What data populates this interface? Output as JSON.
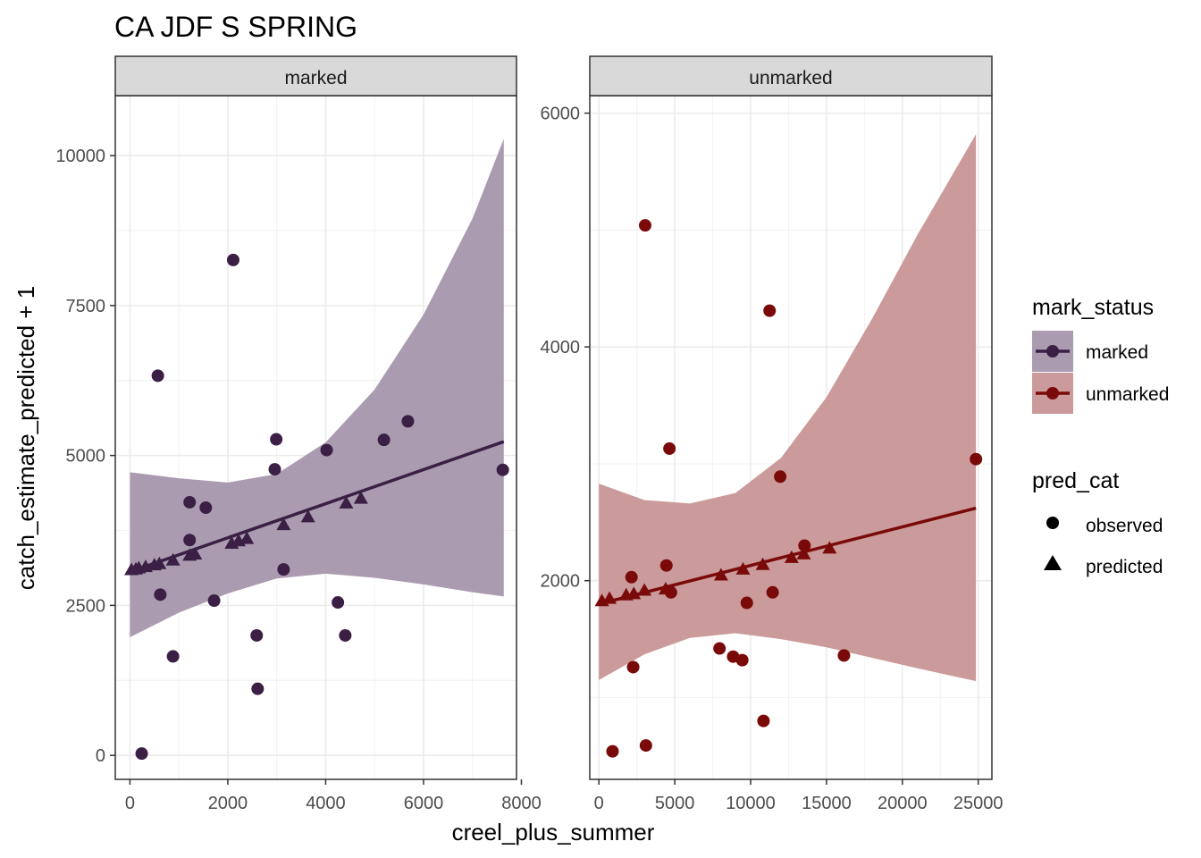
{
  "title": "CA JDF S SPRING",
  "xlabel": "creel_plus_summer",
  "ylabel": "catch_estimate_predicted + 1",
  "colors": {
    "marked": "#3b1f45",
    "unmarked": "#7a0a0a",
    "marked_fill": "#aa9bb0",
    "unmarked_fill": "#cb9a9a",
    "strip": "#d9d9d9",
    "grid": "#ebebeb"
  },
  "legend": {
    "mark_title": "mark_status",
    "mark_items": [
      "marked",
      "unmarked"
    ],
    "pred_title": "pred_cat",
    "pred_items": [
      "observed",
      "predicted"
    ]
  },
  "chart_data": [
    {
      "type": "scatter",
      "panel": "marked",
      "xlim": [
        -300,
        7900
      ],
      "ylim": [
        -400,
        11000
      ],
      "xticks": [
        0,
        2000,
        4000,
        6000,
        8000
      ],
      "xtick_labels": [
        "0",
        "2000",
        "4000",
        "6000",
        "8000"
      ],
      "yticks": [
        0,
        2500,
        5000,
        7500,
        10000
      ],
      "ytick_labels": [
        "0",
        "2500",
        "5000",
        "7500",
        "10000"
      ],
      "observed": [
        [
          240,
          30
        ],
        [
          570,
          6330
        ],
        [
          620,
          2680
        ],
        [
          880,
          1650
        ],
        [
          1220,
          4220
        ],
        [
          1220,
          3590
        ],
        [
          1550,
          4130
        ],
        [
          1720,
          2580
        ],
        [
          2110,
          8260
        ],
        [
          2590,
          2000
        ],
        [
          2610,
          1110
        ],
        [
          2960,
          4770
        ],
        [
          2990,
          5270
        ],
        [
          3140,
          3100
        ],
        [
          4020,
          5090
        ],
        [
          4250,
          2550
        ],
        [
          4400,
          2000
        ],
        [
          5190,
          5260
        ],
        [
          5680,
          5570
        ],
        [
          7620,
          4760
        ]
      ],
      "predicted": [
        [
          30,
          3080
        ],
        [
          120,
          3090
        ],
        [
          180,
          3110
        ],
        [
          320,
          3130
        ],
        [
          500,
          3160
        ],
        [
          600,
          3180
        ],
        [
          880,
          3240
        ],
        [
          1220,
          3320
        ],
        [
          1330,
          3340
        ],
        [
          2080,
          3520
        ],
        [
          2220,
          3560
        ],
        [
          2390,
          3600
        ],
        [
          3140,
          3830
        ],
        [
          3640,
          3960
        ],
        [
          4420,
          4190
        ],
        [
          4720,
          4270
        ]
      ],
      "fit_line": {
        "x": [
          0,
          7640
        ],
        "y": [
          3060,
          5230
        ]
      },
      "ribbon": {
        "x": [
          0,
          1000,
          2000,
          3000,
          4000,
          5000,
          6000,
          7000,
          7640
        ],
        "lower": [
          1970,
          2380,
          2700,
          2950,
          3030,
          2960,
          2850,
          2720,
          2650
        ],
        "upper": [
          4720,
          4620,
          4550,
          4690,
          5220,
          6100,
          7350,
          8950,
          10280
        ]
      }
    },
    {
      "type": "scatter",
      "panel": "unmarked",
      "xlim": [
        -600,
        25900
      ],
      "ylim": [
        300,
        6150
      ],
      "xticks": [
        0,
        5000,
        10000,
        15000,
        20000,
        25000
      ],
      "xtick_labels": [
        "0",
        "5000",
        "10000",
        "15000",
        "20000",
        "25000"
      ],
      "yticks": [
        2000,
        4000,
        6000
      ],
      "ytick_labels": [
        "2000",
        "4000",
        "6000"
      ],
      "observed": [
        [
          900,
          540
        ],
        [
          2150,
          2030
        ],
        [
          2260,
          1260
        ],
        [
          3050,
          5040
        ],
        [
          3100,
          590
        ],
        [
          4450,
          2130
        ],
        [
          4650,
          3130
        ],
        [
          4750,
          1900
        ],
        [
          7950,
          1420
        ],
        [
          8850,
          1350
        ],
        [
          9450,
          1320
        ],
        [
          9750,
          1810
        ],
        [
          10850,
          800
        ],
        [
          11250,
          4310
        ],
        [
          11450,
          1900
        ],
        [
          11950,
          2890
        ],
        [
          13550,
          2300
        ],
        [
          16150,
          1360
        ],
        [
          24850,
          3040
        ]
      ],
      "predicted": [
        [
          200,
          1820
        ],
        [
          700,
          1840
        ],
        [
          1800,
          1870
        ],
        [
          2300,
          1880
        ],
        [
          3000,
          1910
        ],
        [
          4400,
          1920
        ],
        [
          8050,
          2040
        ],
        [
          9500,
          2090
        ],
        [
          10800,
          2130
        ],
        [
          12700,
          2190
        ],
        [
          13500,
          2220
        ],
        [
          15200,
          2270
        ]
      ],
      "fit_line": {
        "x": [
          0,
          24850
        ],
        "y": [
          1800,
          2620
        ]
      },
      "ribbon": {
        "x": [
          0,
          3000,
          6000,
          9000,
          12000,
          15000,
          18000,
          21000,
          24850
        ],
        "lower": [
          1150,
          1370,
          1510,
          1550,
          1500,
          1430,
          1340,
          1250,
          1140
        ],
        "upper": [
          2830,
          2690,
          2660,
          2750,
          3050,
          3570,
          4240,
          4960,
          5820
        ]
      }
    }
  ]
}
